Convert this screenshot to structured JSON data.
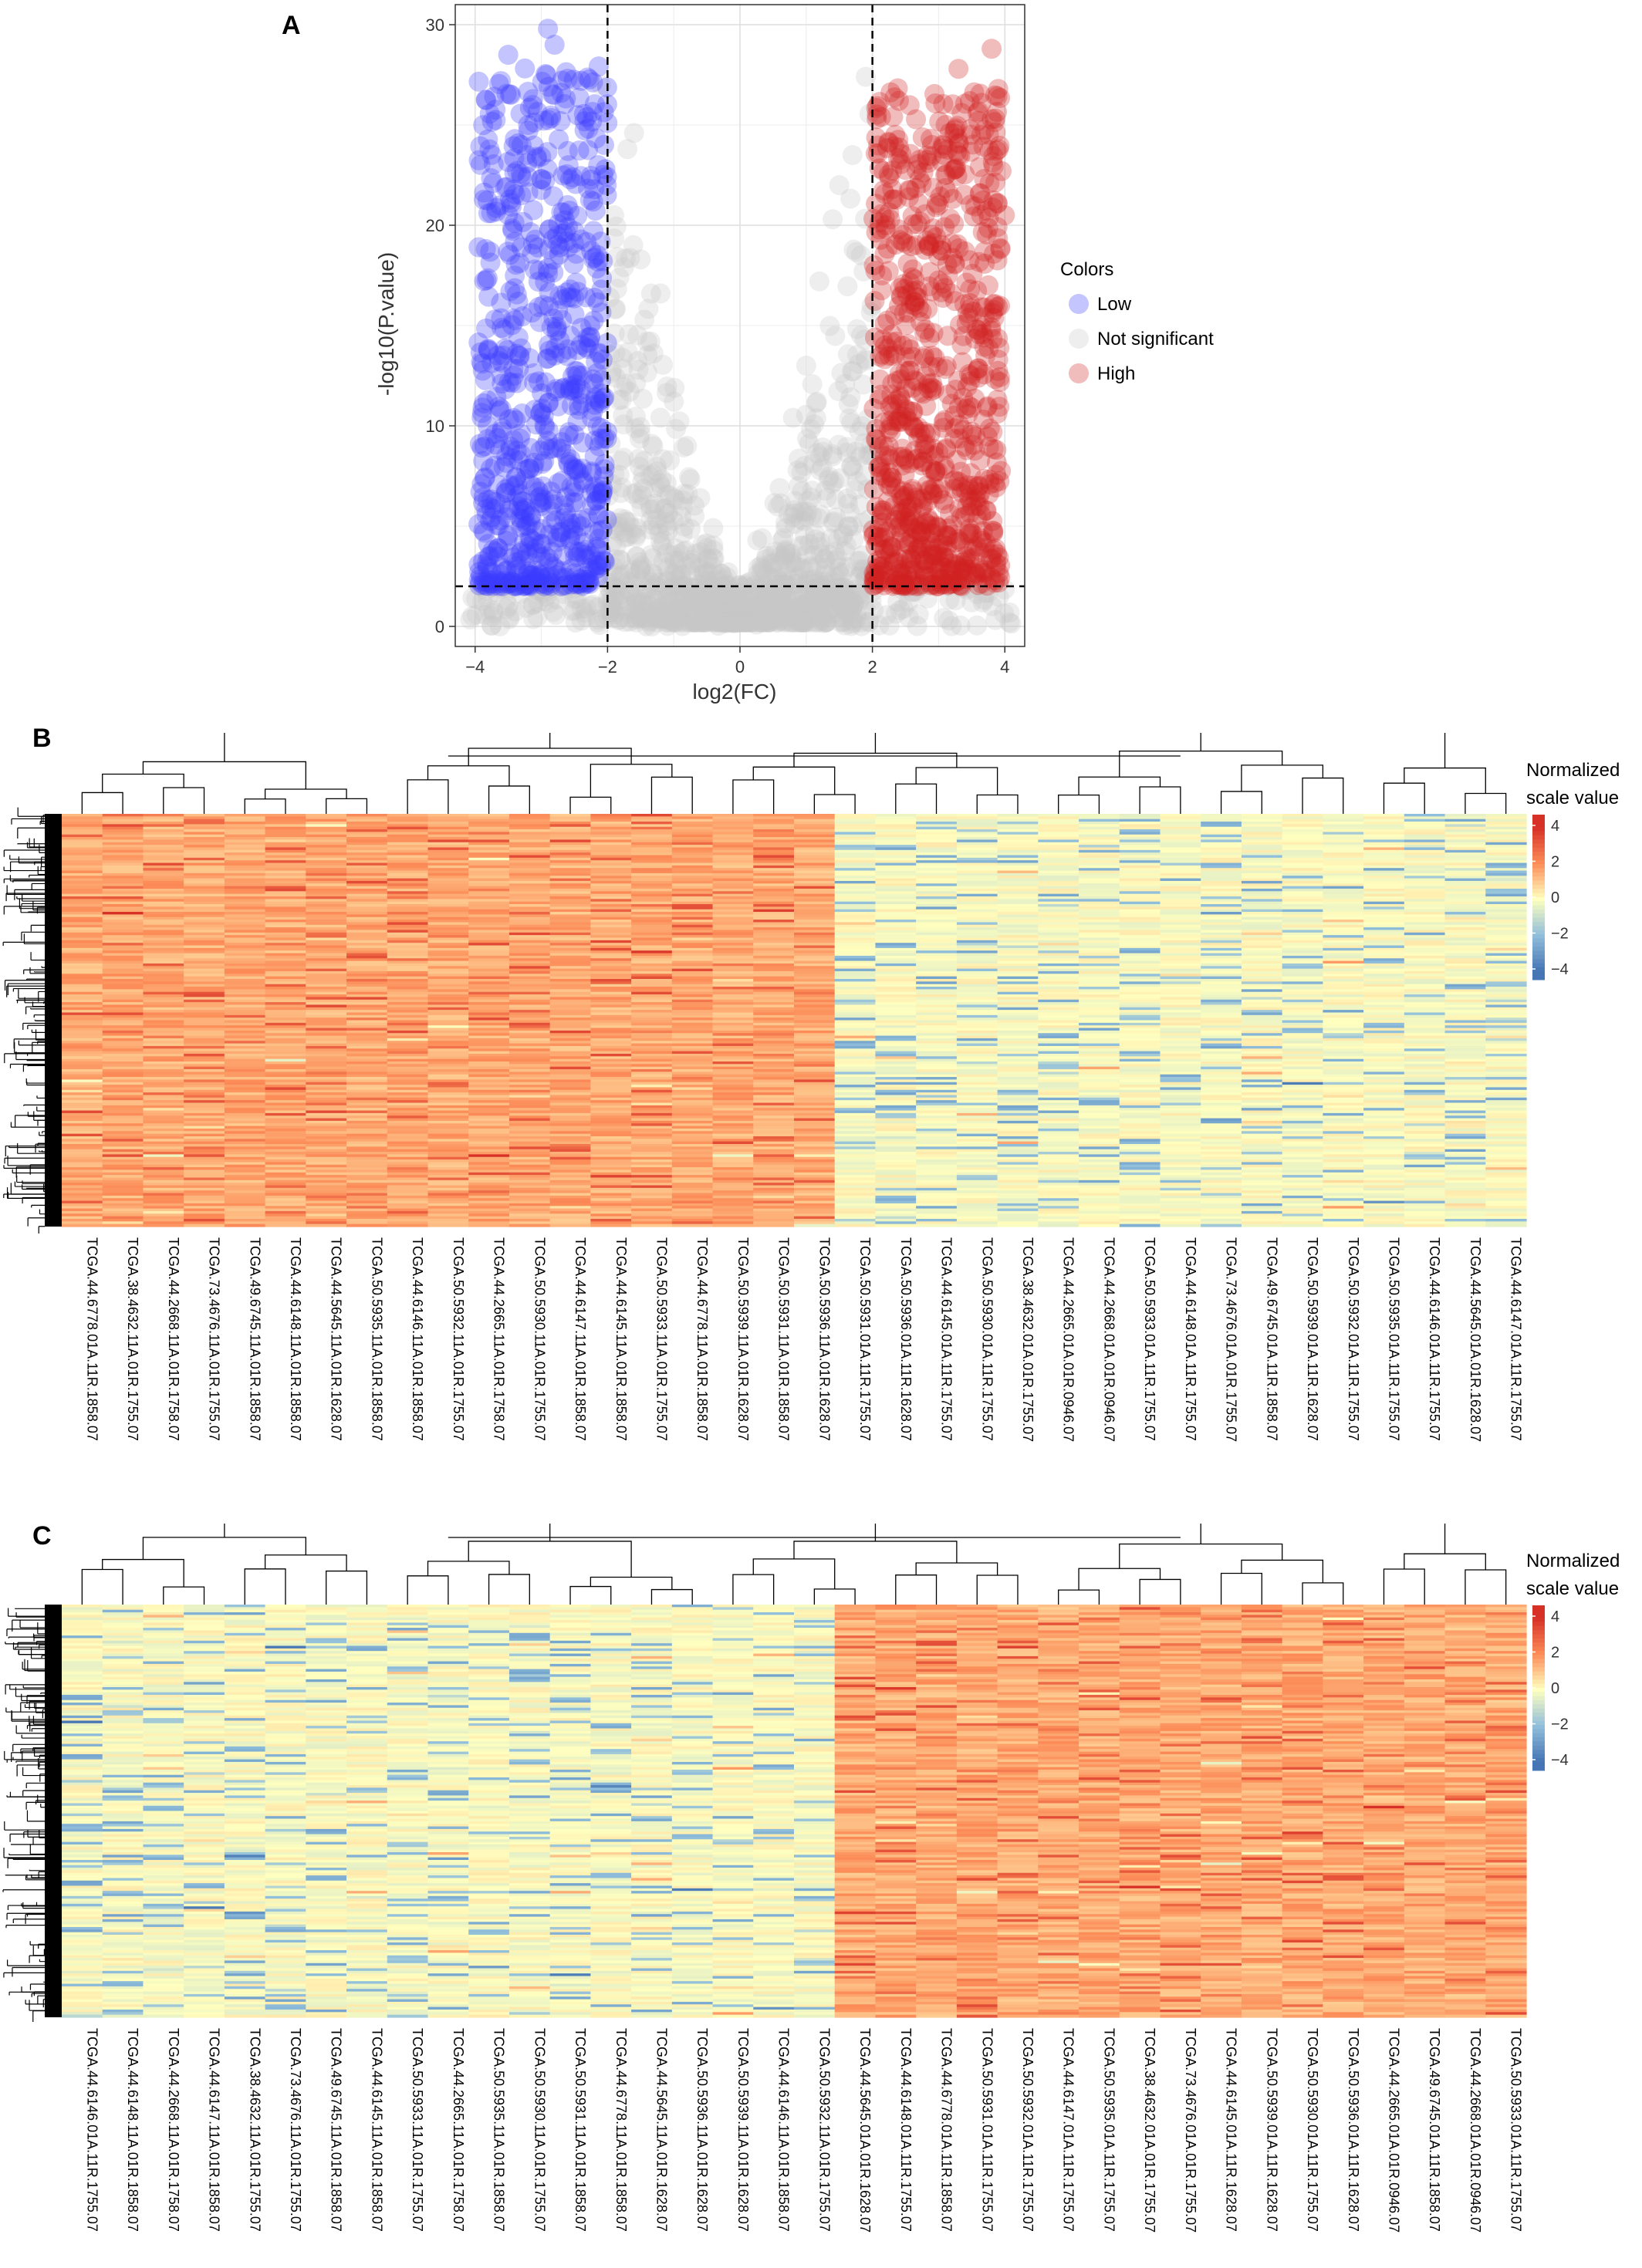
{
  "panels": {
    "A": "A",
    "B": "B",
    "C": "C"
  },
  "chart_data": [
    {
      "type": "scatter",
      "subtype": "volcano",
      "xlabel": "log2(FC)",
      "ylabel": "-log10(P.value)",
      "xlim": [
        -4.3,
        4.3
      ],
      "ylim": [
        -1,
        31
      ],
      "xticks": [
        -4,
        -2,
        0,
        2,
        4
      ],
      "yticks": [
        0,
        10,
        20,
        30
      ],
      "xtick_labels": [
        "−4",
        "−2",
        "0",
        "2",
        "4"
      ],
      "ytick_labels": [
        "0",
        "10",
        "20",
        "30"
      ],
      "thresholds": {
        "x": [
          -2,
          2
        ],
        "y": 2
      },
      "grid": true,
      "legend": {
        "title": "Colors",
        "placement": "right",
        "entries": [
          {
            "label": "Low",
            "color": "#3a3aff"
          },
          {
            "label": "Not significant",
            "color": "#c8c8c8"
          },
          {
            "label": "High",
            "color": "#d22222"
          }
        ]
      },
      "series": [
        {
          "name": "Low",
          "color": "#3a3aff",
          "points": [
            [
              -3.9,
              7.1
            ],
            [
              -3.8,
              20.6
            ],
            [
              -3.7,
              15.3
            ],
            [
              -3.6,
              12.5
            ],
            [
              -3.5,
              28.5
            ],
            [
              -3.4,
              24.3
            ],
            [
              -3.3,
              18.9
            ],
            [
              -3.2,
              25.0
            ],
            [
              -3.1,
              10.8
            ],
            [
              -3.0,
              22.3
            ],
            [
              -2.9,
              29.8
            ],
            [
              -2.8,
              13.5
            ],
            [
              -2.7,
              26.6
            ],
            [
              -2.6,
              8.2
            ],
            [
              -2.5,
              19.7
            ],
            [
              -2.4,
              27.2
            ],
            [
              -2.3,
              5.4
            ],
            [
              -2.2,
              21.8
            ],
            [
              -3.5,
              4.5
            ],
            [
              -3.0,
              6.0
            ],
            [
              -2.6,
              16.4
            ],
            [
              -3.7,
              9.6
            ],
            [
              -2.4,
              11.8
            ],
            [
              -2.9,
              17.6
            ],
            [
              -3.3,
              3.3
            ],
            [
              -2.2,
              2.8
            ],
            [
              -2.6,
              23.7
            ],
            [
              -3.8,
              13.8
            ],
            [
              -2.8,
              29.0
            ],
            [
              -2.3,
              14.4
            ]
          ]
        },
        {
          "name": "High",
          "color": "#d22222",
          "points": [
            [
              2.1,
              3.0
            ],
            [
              2.2,
              19.8
            ],
            [
              2.3,
              12.1
            ],
            [
              2.4,
              26.2
            ],
            [
              2.5,
              8.3
            ],
            [
              2.6,
              17.4
            ],
            [
              2.7,
              21.1
            ],
            [
              2.8,
              14.8
            ],
            [
              2.9,
              24.0
            ],
            [
              3.0,
              6.6
            ],
            [
              3.1,
              22.5
            ],
            [
              3.2,
              11.1
            ],
            [
              3.3,
              27.8
            ],
            [
              3.4,
              18.7
            ],
            [
              3.5,
              9.7
            ],
            [
              3.6,
              25.2
            ],
            [
              3.7,
              15.9
            ],
            [
              3.8,
              28.8
            ],
            [
              3.9,
              13.3
            ],
            [
              4.0,
              20.5
            ],
            [
              2.5,
              4.2
            ],
            [
              3.0,
              2.8
            ],
            [
              3.4,
              5.5
            ],
            [
              2.2,
              7.4
            ],
            [
              3.8,
              3.6
            ],
            [
              2.9,
              16.7
            ],
            [
              3.6,
              12.4
            ],
            [
              2.4,
              10.2
            ],
            [
              3.2,
              19.1
            ],
            [
              3.9,
              26.8
            ]
          ]
        },
        {
          "name": "Not significant",
          "color": "#c8c8c8",
          "points": [
            [
              -1.9,
              20.5
            ],
            [
              -1.7,
              23.8
            ],
            [
              -1.6,
              24.6
            ],
            [
              -1.5,
              18.3
            ],
            [
              -1.4,
              14.2
            ],
            [
              -1.2,
              16.6
            ],
            [
              -1.0,
              11.2
            ],
            [
              -0.8,
              9.0
            ],
            [
              -0.6,
              6.4
            ],
            [
              -0.4,
              3.8
            ],
            [
              -0.2,
              2.0
            ],
            [
              0.0,
              0.5
            ],
            [
              0.2,
              1.6
            ],
            [
              0.4,
              3.5
            ],
            [
              0.6,
              6.9
            ],
            [
              0.8,
              10.4
            ],
            [
              1.0,
              13.0
            ],
            [
              1.2,
              17.2
            ],
            [
              1.4,
              20.3
            ],
            [
              1.5,
              22.0
            ],
            [
              1.7,
              23.5
            ],
            [
              1.9,
              27.4
            ],
            [
              -2.1,
              27.0
            ],
            [
              -3.5,
              1.0
            ],
            [
              3.5,
              1.2
            ],
            [
              -2.5,
              0.8
            ],
            [
              2.7,
              0.6
            ],
            [
              -1.3,
              1.4
            ],
            [
              1.1,
              1.1
            ],
            [
              0.0,
              0.2
            ]
          ]
        }
      ]
    },
    {
      "type": "heatmap",
      "legend": {
        "title_line1": "Normalized",
        "title_line2": "scale value",
        "ticks": [
          "4",
          "2",
          "0",
          "−2",
          "−4"
        ]
      },
      "column_labels": [
        "TCGA.44.6778.01A.11R.1858.07",
        "TCGA.38.4632.11A.01R.1755.07",
        "TCGA.44.2668.11A.01R.1758.07",
        "TCGA.73.4676.11A.01R.1755.07",
        "TCGA.49.6745.11A.01R.1858.07",
        "TCGA.44.6148.11A.01R.1858.07",
        "TCGA.44.5645.11A.01R.1628.07",
        "TCGA.50.5935.11A.01R.1858.07",
        "TCGA.44.6146.11A.01R.1858.07",
        "TCGA.50.5932.11A.01R.1755.07",
        "TCGA.44.2665.11A.01R.1758.07",
        "TCGA.50.5930.11A.01R.1755.07",
        "TCGA.44.6147.11A.01R.1858.07",
        "TCGA.44.6145.11A.01R.1858.07",
        "TCGA.50.5933.11A.01R.1755.07",
        "TCGA.44.6778.11A.01R.1858.07",
        "TCGA.50.5939.11A.01R.1628.07",
        "TCGA.50.5931.11A.01R.1858.07",
        "TCGA.50.5936.11A.01R.1628.07",
        "TCGA.50.5931.01A.11R.1755.07",
        "TCGA.50.5936.01A.11R.1628.07",
        "TCGA.44.6145.01A.11R.1755.07",
        "TCGA.50.5930.01A.11R.1755.07",
        "TCGA.38.4632.01A.01R.1755.07",
        "TCGA.44.2665.01A.01R.0946.07",
        "TCGA.44.2668.01A.01R.0946.07",
        "TCGA.50.5933.01A.11R.1755.07",
        "TCGA.44.6148.01A.11R.1755.07",
        "TCGA.73.4676.01A.01R.1755.07",
        "TCGA.49.6745.01A.11R.1858.07",
        "TCGA.50.5939.01A.11R.1628.07",
        "TCGA.50.5932.01A.11R.1755.07",
        "TCGA.50.5935.01A.11R.1755.07",
        "TCGA.44.6146.01A.11R.1755.07",
        "TCGA.44.5645.01A.01R.1628.07",
        "TCGA.44.6147.01A.11R.1755.07"
      ],
      "groups": [
        {
          "columns": 19,
          "pattern": "high"
        },
        {
          "columns": 17,
          "pattern": "low"
        }
      ]
    },
    {
      "type": "heatmap",
      "legend": {
        "title_line1": "Normalized",
        "title_line2": "scale value",
        "ticks": [
          "4",
          "2",
          "0",
          "−2",
          "−4"
        ]
      },
      "column_labels": [
        "TCGA.44.6146.01A.11R.1755.07",
        "TCGA.44.6148.11A.01R.1858.07",
        "TCGA.44.2668.11A.01R.1758.07",
        "TCGA.44.6147.11A.01R.1858.07",
        "TCGA.38.4632.11A.01R.1755.07",
        "TCGA.73.4676.11A.01R.1755.07",
        "TCGA.49.6745.11A.01R.1858.07",
        "TCGA.44.6145.11A.01R.1858.07",
        "TCGA.50.5933.11A.01R.1755.07",
        "TCGA.44.2665.11A.01R.1758.07",
        "TCGA.50.5935.11A.01R.1858.07",
        "TCGA.50.5930.11A.01R.1755.07",
        "TCGA.50.5931.11A.01R.1858.07",
        "TCGA.44.6778.11A.01R.1858.07",
        "TCGA.44.5645.11A.01R.1628.07",
        "TCGA.50.5936.11A.01R.1628.07",
        "TCGA.50.5939.11A.01R.1628.07",
        "TCGA.44.6146.11A.01R.1858.07",
        "TCGA.50.5932.11A.01R.1755.07",
        "TCGA.44.5645.01A.01R.1628.07",
        "TCGA.44.6148.01A.11R.1755.07",
        "TCGA.44.6778.01A.11R.1858.07",
        "TCGA.50.5931.01A.11R.1755.07",
        "TCGA.50.5932.01A.11R.1755.07",
        "TCGA.44.6147.01A.11R.1755.07",
        "TCGA.50.5935.01A.11R.1755.07",
        "TCGA.38.4632.01A.01R.1755.07",
        "TCGA.73.4676.01A.01R.1755.07",
        "TCGA.44.6145.01A.11R.1628.07",
        "TCGA.50.5939.01A.11R.1628.07",
        "TCGA.50.5930.01A.11R.1755.07",
        "TCGA.50.5936.01A.11R.1628.07",
        "TCGA.44.2665.01A.01R.0946.07",
        "TCGA.49.6745.01A.11R.1858.07",
        "TCGA.44.2668.01A.01R.0946.07",
        "TCGA.50.5933.01A.11R.1755.07"
      ],
      "groups": [
        {
          "columns": 19,
          "pattern": "low"
        },
        {
          "columns": 17,
          "pattern": "high"
        }
      ]
    }
  ]
}
